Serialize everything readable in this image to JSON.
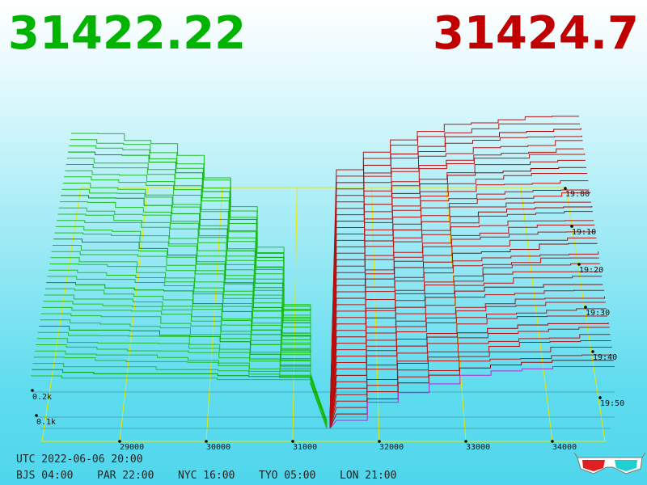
{
  "header": {
    "bid_price": "31422.22",
    "ask_price": "31424.7"
  },
  "price_axis": {
    "ticks": [
      29000,
      30000,
      31000,
      32000,
      33000,
      34000
    ]
  },
  "time_axis": {
    "ticks": [
      "19:00",
      "19:10",
      "19:20",
      "19:30",
      "19:40",
      "19:50"
    ]
  },
  "volume_axis": {
    "ticks": [
      "0.2k",
      "0.1k"
    ]
  },
  "footer": {
    "utc": "UTC 2022-06-06 20:00",
    "zones": [
      "BJS 04:00",
      "PAR 22:00",
      "NYC 16:00",
      "TYO 05:00",
      "LON 21:00"
    ]
  }
}
